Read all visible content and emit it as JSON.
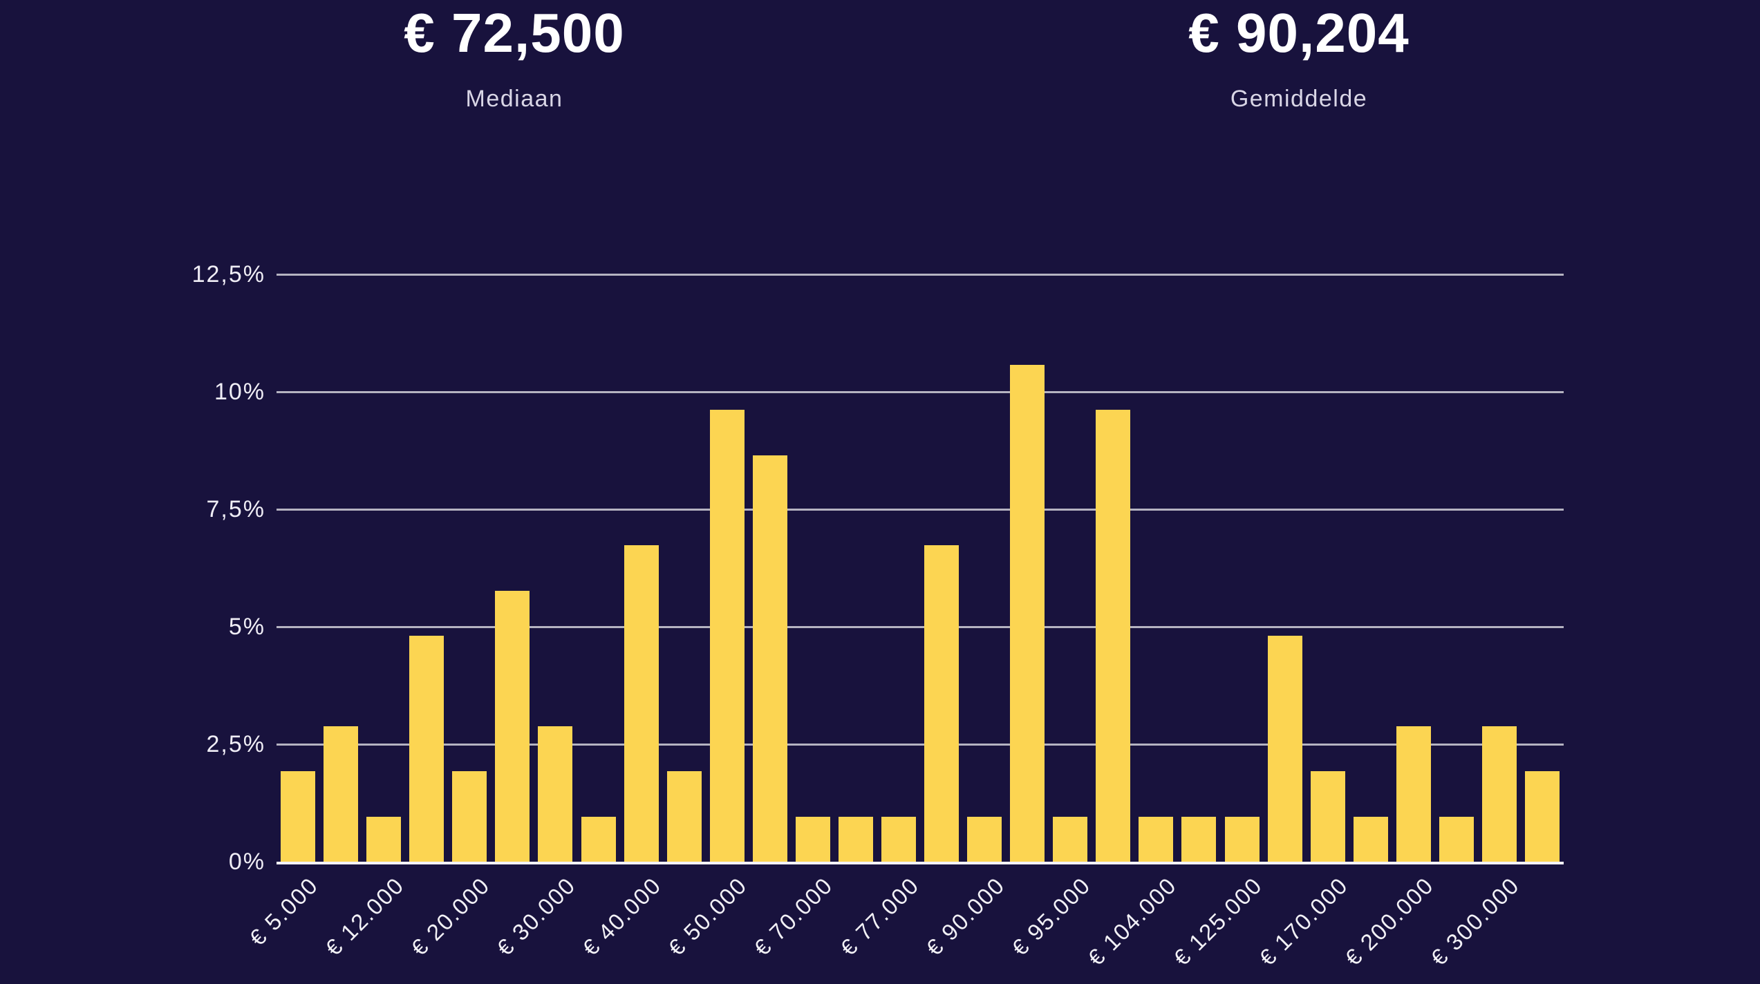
{
  "stats": {
    "median": {
      "value": "€ 72,500",
      "label": "Mediaan"
    },
    "average": {
      "value": "€ 90,204",
      "label": "Gemiddelde"
    }
  },
  "chart_data": {
    "type": "bar",
    "title": "",
    "xlabel": "",
    "ylabel": "",
    "ylim": [
      0,
      12.5
    ],
    "grid": true,
    "x_label_rotation": -45,
    "y_ticks": [
      {
        "label": "12,5%",
        "value": 12.5
      },
      {
        "label": "10%",
        "value": 10
      },
      {
        "label": "7,5%",
        "value": 7.5
      },
      {
        "label": "5%",
        "value": 5
      },
      {
        "label": "2,5%",
        "value": 2.5
      },
      {
        "label": "0%",
        "value": 0
      }
    ],
    "categories": [
      "€ 5.000",
      "",
      "€ 12.000",
      "",
      "€ 20.000",
      "",
      "€ 30.000",
      "",
      "€ 40.000",
      "",
      "€ 50.000",
      "",
      "€ 70.000",
      "",
      "€ 77.000",
      "",
      "€ 90.000",
      "",
      "€ 95.000",
      "",
      "€ 104.000",
      "",
      "€ 125.000",
      "",
      "€ 170.000",
      "",
      "€ 200.000",
      "",
      "€ 300.000",
      ""
    ],
    "values": [
      1.92,
      2.88,
      0.96,
      4.81,
      1.92,
      5.77,
      2.88,
      0.96,
      6.73,
      1.92,
      9.62,
      8.65,
      0.96,
      0.96,
      0.96,
      6.73,
      0.96,
      10.58,
      0.96,
      9.62,
      0.96,
      0.96,
      0.96,
      4.81,
      1.92,
      0.96,
      2.88,
      0.96,
      2.88,
      1.92
    ]
  },
  "colors": {
    "background": "#18123D",
    "bar": "#FCD552",
    "gridline": "#B5B3C1",
    "axis_line": "#F4F3F8",
    "stat_value_text": "#FFFFFF",
    "stat_label_text": "#D9D6E6",
    "tick_text": "#F2F1F6"
  }
}
